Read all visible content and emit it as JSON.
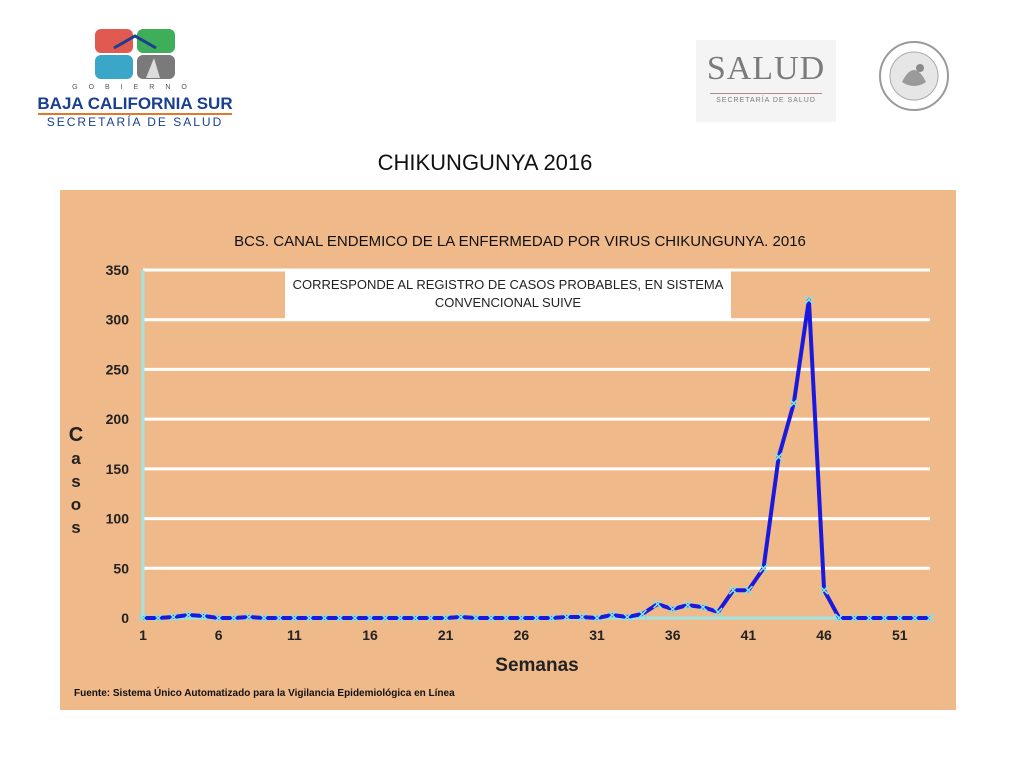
{
  "header": {
    "left_logo": {
      "gobierno": "GOBIERNO",
      "state": "BAJA CALIFORNIA SUR",
      "secretaria": "SECRETARÍA DE SALUD"
    },
    "right_logo": {
      "salud": "SALUD",
      "secretaria": "SECRETARÍA DE SALUD"
    }
  },
  "page_title": "CHIKUNGUNYA 2016",
  "chart_data": {
    "type": "line",
    "title": "BCS. CANAL ENDEMICO DE LA ENFERMEDAD POR VIRUS CHIKUNGUNYA. 2016",
    "note": "CORRESPONDE AL REGISTRO DE CASOS PROBABLES, EN SISTEMA CONVENCIONAL SUIVE",
    "xlabel": "Semanas",
    "ylabel": "Casos",
    "xlim": [
      1,
      53
    ],
    "ylim": [
      0,
      350
    ],
    "xticks": [
      1,
      6,
      11,
      16,
      21,
      26,
      31,
      36,
      41,
      46,
      51
    ],
    "yticks": [
      0,
      50,
      100,
      150,
      200,
      250,
      300,
      350
    ],
    "grid": true,
    "x": [
      1,
      2,
      3,
      4,
      5,
      6,
      7,
      8,
      9,
      10,
      11,
      12,
      13,
      14,
      15,
      16,
      17,
      18,
      19,
      20,
      21,
      22,
      23,
      24,
      25,
      26,
      27,
      28,
      29,
      30,
      31,
      32,
      33,
      34,
      35,
      36,
      37,
      38,
      39,
      40,
      41,
      42,
      43,
      44,
      45,
      46,
      47,
      48,
      49,
      50,
      51,
      52,
      53
    ],
    "series": [
      {
        "name": "",
        "color": "#1a1adf",
        "marker_color": "#7fe3e3",
        "values": [
          0,
          0,
          1,
          3,
          2,
          0,
          0,
          1,
          0,
          0,
          0,
          0,
          0,
          0,
          0,
          0,
          0,
          0,
          0,
          0,
          0,
          1,
          0,
          0,
          0,
          0,
          0,
          0,
          1,
          1,
          0,
          3,
          1,
          4,
          14,
          9,
          13,
          11,
          6,
          28,
          28,
          50,
          162,
          216,
          320,
          28,
          0,
          0,
          0,
          0,
          0,
          0,
          0
        ]
      }
    ],
    "source": "Fuente: Sistema Único Automatizado para la Vigilancia Epidemiológica en Línea"
  }
}
